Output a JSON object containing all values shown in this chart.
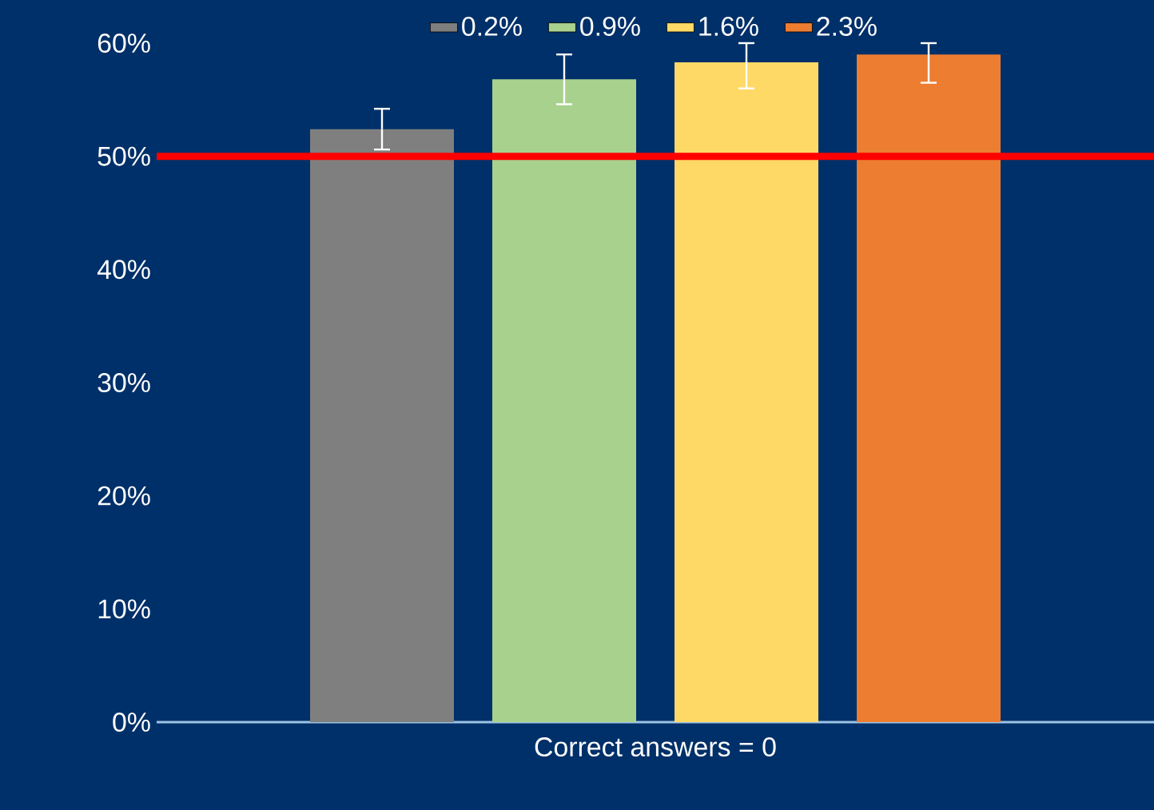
{
  "chart_data": {
    "type": "bar",
    "categories": [
      "Correct answers = 0"
    ],
    "series": [
      {
        "name": "0.2%",
        "color": "#7f7f7f",
        "values": [
          52.4
        ],
        "errors": [
          1.8
        ]
      },
      {
        "name": "0.9%",
        "color": "#a9d18e",
        "values": [
          56.8
        ],
        "errors": [
          2.2
        ]
      },
      {
        "name": "1.6%",
        "color": "#ffd966",
        "values": [
          58.3
        ],
        "errors": [
          [
            56.0,
            60
          ]
        ]
      },
      {
        "name": "2.3%",
        "color": "#ed7d31",
        "values": [
          59.0
        ],
        "errors": [
          [
            56.5,
            60
          ]
        ]
      }
    ],
    "ylim": [
      0,
      60
    ],
    "yticks": [
      {
        "value": 0,
        "label": "0%"
      },
      {
        "value": 10,
        "label": "10%"
      },
      {
        "value": 20,
        "label": "20%"
      },
      {
        "value": 30,
        "label": "30%"
      },
      {
        "value": 40,
        "label": "40%"
      },
      {
        "value": 50,
        "label": "50%"
      },
      {
        "value": 60,
        "label": "60%"
      }
    ],
    "ref_lines": [
      {
        "axis": "y",
        "value": 50,
        "color": "#ff0000"
      }
    ],
    "grid": false,
    "legend": "top"
  }
}
